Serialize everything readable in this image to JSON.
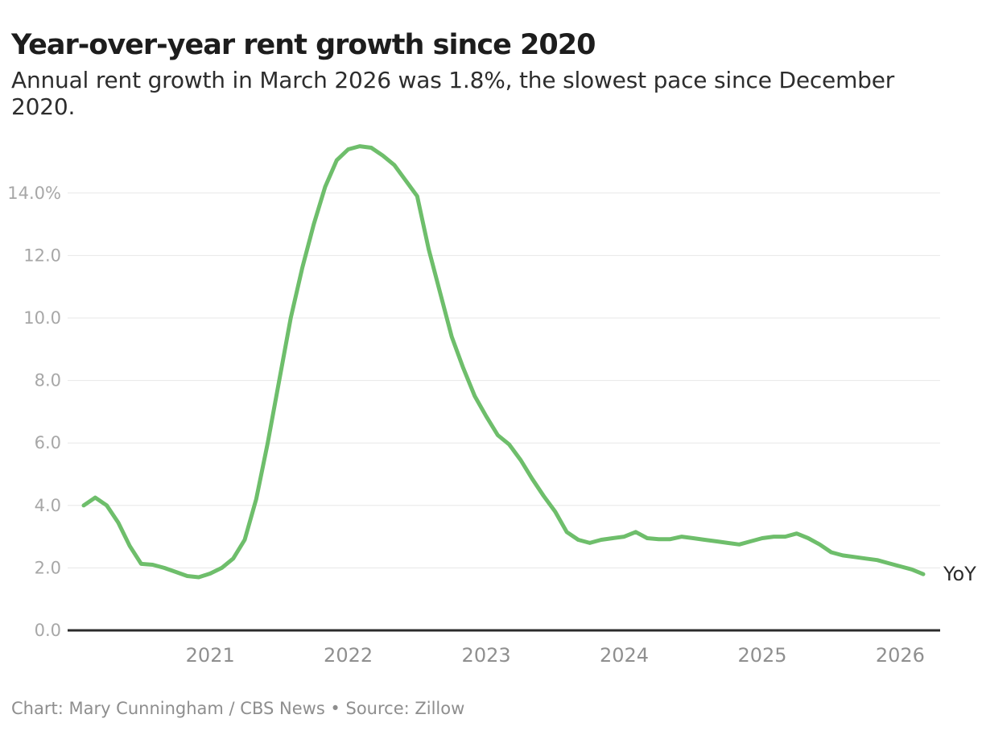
{
  "header": {
    "title": "Year-over-year rent growth since 2020",
    "subtitle_lines": [
      "Annual rent growth in March 2026 was 1.8%, the slowest pace since December",
      "2020."
    ]
  },
  "chart_data": {
    "type": "line",
    "title": "Year-over-year rent growth since 2020",
    "xlabel": "",
    "ylabel": "",
    "ylim": [
      0,
      15.8
    ],
    "grid": true,
    "line_color": "#6ebe6b",
    "end_label": "YoY",
    "yticks": [
      0,
      2,
      4,
      6,
      8,
      10,
      12,
      14
    ],
    "ytick_labels": [
      "0.0",
      "2.0",
      "4.0",
      "6.0",
      "8.0",
      "10.0",
      "12.0",
      "14.0%"
    ],
    "xtick_labels": [
      "2021",
      "2022",
      "2023",
      "2024",
      "2025",
      "2026"
    ],
    "x": [
      "2020-02",
      "2020-03",
      "2020-04",
      "2020-05",
      "2020-06",
      "2020-07",
      "2020-08",
      "2020-09",
      "2020-10",
      "2020-11",
      "2020-12",
      "2021-01",
      "2021-02",
      "2021-03",
      "2021-04",
      "2021-05",
      "2021-06",
      "2021-07",
      "2021-08",
      "2021-09",
      "2021-10",
      "2021-11",
      "2021-12",
      "2022-01",
      "2022-02",
      "2022-03",
      "2022-04",
      "2022-05",
      "2022-06",
      "2022-07",
      "2022-08",
      "2022-09",
      "2022-10",
      "2022-11",
      "2022-12",
      "2023-01",
      "2023-02",
      "2023-03",
      "2023-04",
      "2023-05",
      "2023-06",
      "2023-07",
      "2023-08",
      "2023-09",
      "2023-10",
      "2023-11",
      "2023-12",
      "2024-01",
      "2024-02",
      "2024-03",
      "2024-04",
      "2024-05",
      "2024-06",
      "2024-07",
      "2024-08",
      "2024-09",
      "2024-10",
      "2024-11",
      "2024-12",
      "2025-01",
      "2025-02",
      "2025-03",
      "2025-04",
      "2025-05",
      "2025-06",
      "2025-07",
      "2025-08",
      "2025-09",
      "2025-10",
      "2025-11",
      "2025-12",
      "2026-01",
      "2026-02",
      "2026-03"
    ],
    "series": [
      {
        "name": "YoY",
        "values": [
          4.0,
          4.25,
          4.0,
          3.45,
          2.7,
          2.13,
          2.1,
          2.0,
          1.87,
          1.74,
          1.7,
          1.82,
          2.0,
          2.3,
          2.9,
          4.2,
          6.0,
          8.0,
          10.0,
          11.6,
          13.0,
          14.2,
          15.05,
          15.4,
          15.5,
          15.45,
          15.2,
          14.9,
          14.4,
          13.9,
          12.2,
          10.8,
          9.4,
          8.4,
          7.5,
          6.85,
          6.25,
          5.95,
          5.45,
          4.85,
          4.3,
          3.8,
          3.15,
          2.9,
          2.8,
          2.9,
          2.95,
          3.0,
          3.15,
          2.95,
          2.92,
          2.92,
          3.0,
          2.95,
          2.9,
          2.85,
          2.8,
          2.75,
          2.85,
          2.95,
          3.0,
          3.0,
          3.1,
          2.95,
          2.75,
          2.5,
          2.4,
          2.35,
          2.3,
          2.25,
          2.15,
          2.05,
          1.95,
          1.8
        ]
      }
    ]
  },
  "footer": {
    "text": "Chart: Mary Cunningham / CBS News • Source: Zillow"
  }
}
